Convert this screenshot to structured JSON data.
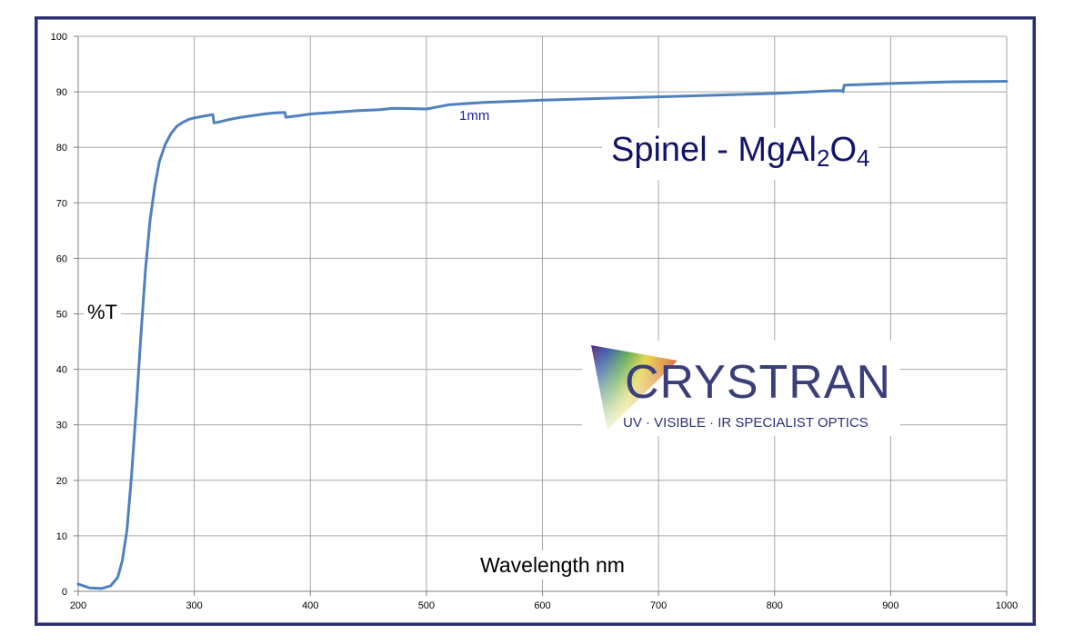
{
  "chart_data": {
    "type": "line",
    "title": "Spinel - MgAl",
    "title_sub1": "2",
    "title_mid": "O",
    "title_sub2": "4",
    "xlabel": "Wavelength nm",
    "ylabel": "%T",
    "xlim": [
      200,
      1000
    ],
    "ylim": [
      0,
      100
    ],
    "x_ticks": [
      200,
      300,
      400,
      500,
      600,
      700,
      800,
      900,
      1000
    ],
    "y_ticks": [
      0,
      10,
      20,
      30,
      40,
      50,
      60,
      70,
      80,
      90,
      100
    ],
    "grid": true,
    "series": [
      {
        "name": "1mm",
        "color": "#4f81bd",
        "x": [
          200,
          210,
          220,
          228,
          234,
          238,
          242,
          246,
          250,
          254,
          258,
          262,
          266,
          270,
          275,
          280,
          285,
          290,
          295,
          300,
          305,
          310,
          316,
          317,
          320,
          330,
          340,
          350,
          360,
          370,
          378,
          379,
          382,
          390,
          400,
          420,
          440,
          460,
          470,
          480,
          500,
          520,
          550,
          600,
          650,
          700,
          750,
          800,
          850,
          858,
          859,
          860,
          900,
          950,
          1000
        ],
        "y": [
          1.3,
          0.6,
          0.5,
          1.0,
          2.5,
          5.5,
          11,
          21,
          33,
          46,
          58,
          67,
          73,
          77.5,
          80.5,
          82.5,
          83.8,
          84.5,
          85,
          85.3,
          85.5,
          85.7,
          85.9,
          84.4,
          84.5,
          85,
          85.4,
          85.7,
          86,
          86.2,
          86.3,
          85.4,
          85.5,
          85.7,
          86,
          86.3,
          86.6,
          86.8,
          87,
          87,
          86.9,
          87.7,
          88.1,
          88.5,
          88.8,
          89.1,
          89.4,
          89.7,
          90.2,
          90.2,
          90,
          91.2,
          91.5,
          91.8,
          91.9
        ]
      }
    ]
  },
  "logo": {
    "wordmark": "CRYSTRAN",
    "tagline": "UV · VISIBLE · IR SPECIALIST OPTICS"
  }
}
